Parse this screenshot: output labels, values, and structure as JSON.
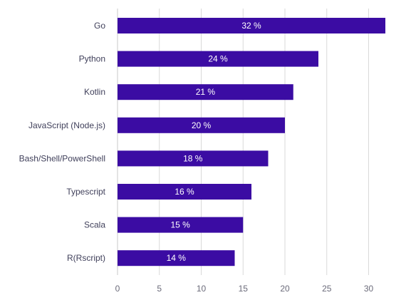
{
  "chart_data": {
    "type": "bar",
    "orientation": "horizontal",
    "categories": [
      "Go",
      "Python",
      "Kotlin",
      "JavaScript (Node.js)",
      "Bash/Shell/PowerShell",
      "Typescript",
      "Scala",
      "R(Rscript)"
    ],
    "values": [
      32,
      24,
      21,
      20,
      18,
      16,
      15,
      14
    ],
    "value_labels": [
      "32 %",
      "24 %",
      "21 %",
      "20 %",
      "18 %",
      "16 %",
      "15 %",
      "14 %"
    ],
    "x_ticks": [
      0,
      5,
      10,
      15,
      20,
      25,
      30
    ],
    "xlim": [
      0,
      32
    ],
    "grid": "vertical",
    "bar_color": "#3b0ca3",
    "value_label_color": "#ffffff"
  }
}
